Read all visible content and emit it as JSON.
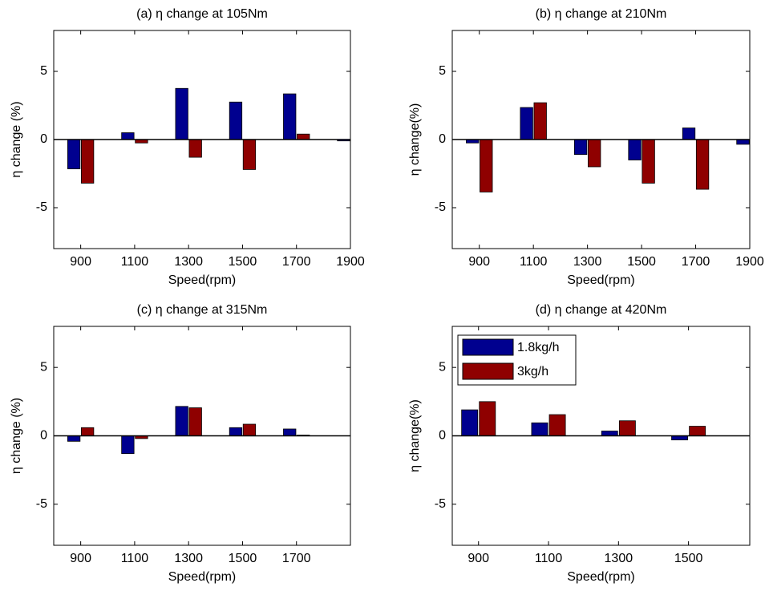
{
  "chart_data": [
    {
      "type": "bar",
      "title": "(a) η change at 105Nm",
      "xlabel": "Speed(rpm)",
      "ylabel": "η change (%)",
      "x": [
        900,
        1100,
        1300,
        1500,
        1700,
        1900
      ],
      "series": [
        {
          "color": "#00008f",
          "values": [
            -2.15,
            0.5,
            3.75,
            2.75,
            3.35,
            -0.1
          ]
        },
        {
          "color": "#8f0000",
          "values": [
            -3.2,
            -0.25,
            -1.3,
            -2.2,
            0.4,
            0
          ]
        }
      ],
      "xlim": [
        800,
        1900
      ],
      "ylim": [
        -8,
        8
      ],
      "xticks": [
        900,
        1100,
        1300,
        1500,
        1700,
        1900
      ],
      "yticks": [
        -5,
        0,
        5
      ]
    },
    {
      "type": "bar",
      "title": "(b) η change at 210Nm",
      "xlabel": "Speed(rpm)",
      "ylabel": "η change(%)",
      "x": [
        900,
        1100,
        1300,
        1500,
        1700,
        1900
      ],
      "series": [
        {
          "color": "#00008f",
          "values": [
            -0.25,
            2.35,
            -1.1,
            -1.5,
            0.85,
            -0.35
          ]
        },
        {
          "color": "#8f0000",
          "values": [
            -3.85,
            2.7,
            -2.0,
            -3.2,
            -3.65,
            0
          ]
        }
      ],
      "xlim": [
        800,
        1900
      ],
      "ylim": [
        -8,
        8
      ],
      "xticks": [
        900,
        1100,
        1300,
        1500,
        1700,
        1900
      ],
      "yticks": [
        -5,
        0,
        5
      ]
    },
    {
      "type": "bar",
      "title": "(c) η change at 315Nm",
      "xlabel": "Speed(rpm)",
      "ylabel": "η change (%)",
      "x": [
        900,
        1100,
        1300,
        1500,
        1700
      ],
      "series": [
        {
          "color": "#00008f",
          "values": [
            -0.4,
            -1.3,
            2.15,
            0.6,
            0.5
          ]
        },
        {
          "color": "#8f0000",
          "values": [
            0.6,
            -0.2,
            2.05,
            0.85,
            0.05
          ]
        }
      ],
      "xlim": [
        800,
        1900
      ],
      "ylim": [
        -8,
        8
      ],
      "xticks": [
        900,
        1100,
        1300,
        1500,
        1700
      ],
      "yticks": [
        -5,
        0,
        5
      ]
    },
    {
      "type": "bar",
      "title": "(d) η change at 420Nm",
      "xlabel": "Speed(rpm)",
      "ylabel": "η change(%)",
      "x": [
        900,
        1100,
        1300,
        1500
      ],
      "series": [
        {
          "name": "1.8kg/h",
          "color": "#00008f",
          "values": [
            1.9,
            0.95,
            0.35,
            -0.3
          ]
        },
        {
          "name": "3kg/h",
          "color": "#8f0000",
          "values": [
            2.5,
            1.55,
            1.1,
            0.7
          ]
        }
      ],
      "xlim": [
        825,
        1675
      ],
      "ylim": [
        -8,
        8
      ],
      "xticks": [
        900,
        1100,
        1300,
        1500
      ],
      "yticks": [
        -5,
        0,
        5
      ],
      "legend": "upper left"
    }
  ]
}
